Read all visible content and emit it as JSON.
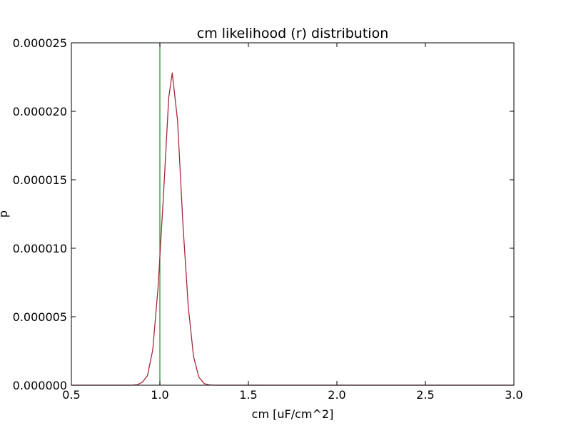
{
  "chart_data": {
    "type": "line",
    "title": "cm likelihood (r) distribution",
    "xlabel": "cm [uF/cm^2]",
    "ylabel": "p",
    "xlim": [
      0.5,
      3.0
    ],
    "ylim": [
      0,
      2.5e-05
    ],
    "xticks": [
      0.5,
      1.0,
      1.5,
      2.0,
      2.5,
      3.0
    ],
    "xtick_labels": [
      "0.5",
      "1.0",
      "1.5",
      "2.0",
      "2.5",
      "3.0"
    ],
    "yticks": [
      0,
      5e-06,
      1e-05,
      1.5e-05,
      2e-05,
      2.5e-05
    ],
    "ytick_labels": [
      "0.000000",
      "0.000005",
      "0.000010",
      "0.000015",
      "0.000020",
      "0.000025"
    ],
    "grid": false,
    "series": [
      {
        "color": "#a52a3a",
        "x": [
          0.5,
          0.6,
          0.7,
          0.8,
          0.84,
          0.87,
          0.9,
          0.93,
          0.96,
          0.99,
          1.02,
          1.05,
          1.07,
          1.1,
          1.13,
          1.16,
          1.19,
          1.22,
          1.25,
          1.28,
          1.31,
          1.4,
          1.6,
          2.0,
          2.5,
          3.0
        ],
        "y": [
          0,
          0,
          0,
          0,
          0,
          3e-08,
          2e-07,
          7e-07,
          2.6e-06,
          7.2e-06,
          1.38e-05,
          2.1e-05,
          2.28e-05,
          1.93e-05,
          1.18e-05,
          5.8e-06,
          2.1e-06,
          6e-07,
          1.2e-07,
          2e-08,
          0,
          0,
          0,
          0,
          0,
          0
        ]
      }
    ],
    "vertical_line": {
      "x": 1.0,
      "color": "#228b22"
    }
  }
}
